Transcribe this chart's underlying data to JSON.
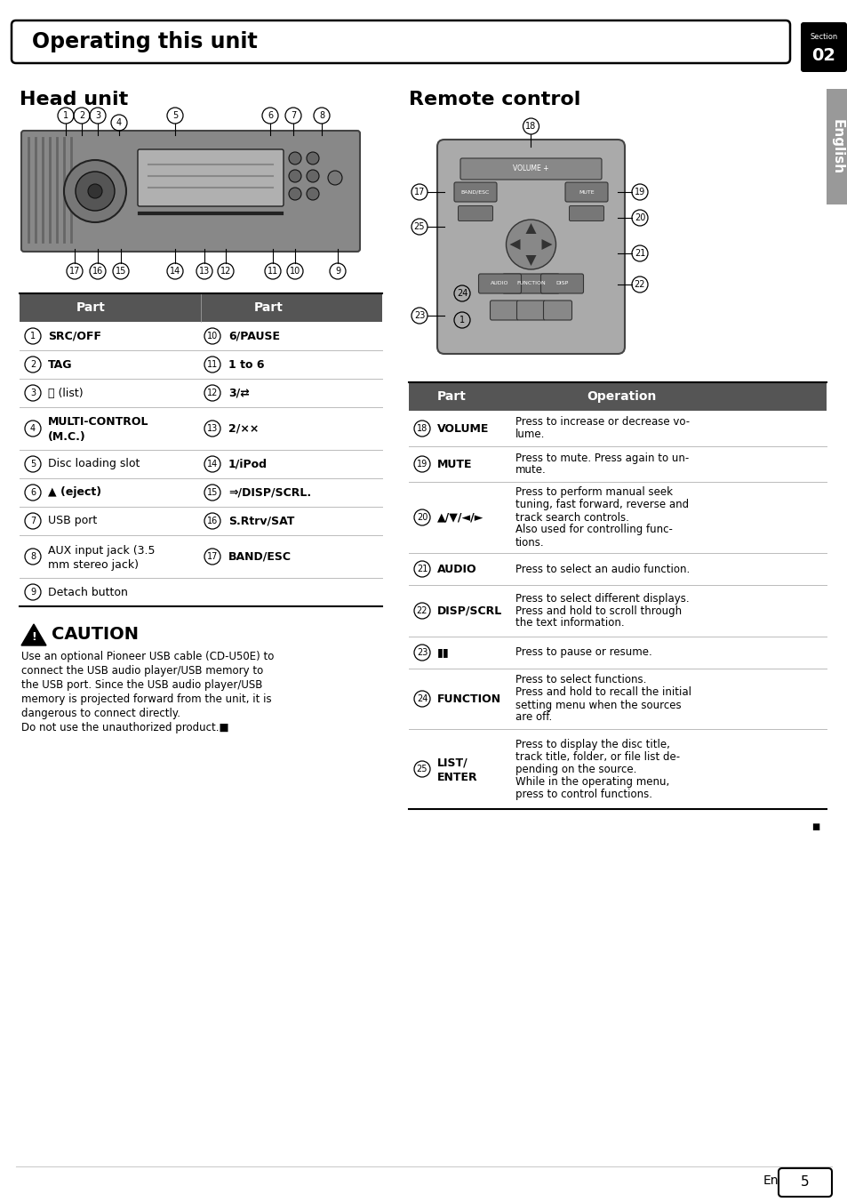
{
  "page_bg": "#ffffff",
  "header_text": "Operating this unit",
  "section_label": "Section",
  "section_number": "02",
  "left_title": "Head unit",
  "right_title": "Remote control",
  "table_header_bg": "#555555",
  "head_unit_rows": [
    [
      "1",
      "SRC/OFF",
      "10",
      "6/PAUSE",
      false,
      true
    ],
    [
      "2",
      "TAG",
      "11",
      "1 to 6",
      true,
      true
    ],
    [
      "3",
      "⌕ (list)",
      "12",
      "3/⇄",
      false,
      true
    ],
    [
      "4",
      "MULTI-CONTROL\n(M.C.)",
      "13",
      "2/××",
      true,
      true
    ],
    [
      "5",
      "Disc loading slot",
      "14",
      "1/iPod",
      false,
      true
    ],
    [
      "6",
      "▲ (eject)",
      "15",
      "⇒/DISP/SCRL.",
      false,
      true
    ],
    [
      "7",
      "USB port",
      "16",
      "S.Rtrv/SAT",
      false,
      true
    ],
    [
      "8",
      "AUX input jack (3.5\nmm stereo jack)",
      "17",
      "BAND/ESC",
      false,
      true
    ],
    [
      "9",
      "Detach button",
      "",
      "",
      false,
      false
    ]
  ],
  "remote_rows": [
    [
      "18",
      "VOLUME",
      "Press to increase or decrease vo-\nlume."
    ],
    [
      "19",
      "MUTE",
      "Press to mute. Press again to un-\nmute."
    ],
    [
      "20",
      "▲/▼/◄/►",
      "Press to perform manual seek\ntuning, fast forward, reverse and\ntrack search controls.\nAlso used for controlling func-\ntions."
    ],
    [
      "21",
      "AUDIO",
      "Press to select an audio function."
    ],
    [
      "22",
      "DISP/SCRL",
      "Press to select different displays.\nPress and hold to scroll through\nthe text information."
    ],
    [
      "23",
      "▮▮",
      "Press to pause or resume."
    ],
    [
      "24",
      "FUNCTION",
      "Press to select functions.\nPress and hold to recall the initial\nsetting menu when the sources\nare off."
    ],
    [
      "25",
      "LIST/\nENTER",
      "Press to display the disc title,\ntrack title, folder, or file list de-\npending on the source.\nWhile in the operating menu,\npress to control functions."
    ]
  ],
  "caution_title": "CAUTION",
  "caution_lines": [
    "Use an optional Pioneer USB cable (CD-U50E) to",
    "connect the USB audio player/USB memory to",
    "the USB port. Since the USB audio player/USB",
    "memory is projected forward from the unit, it is",
    "dangerous to connect directly.",
    "Do not use the unauthorized product.■"
  ],
  "footer_page": "5",
  "footer_en": "En",
  "english_sidebar": "English"
}
